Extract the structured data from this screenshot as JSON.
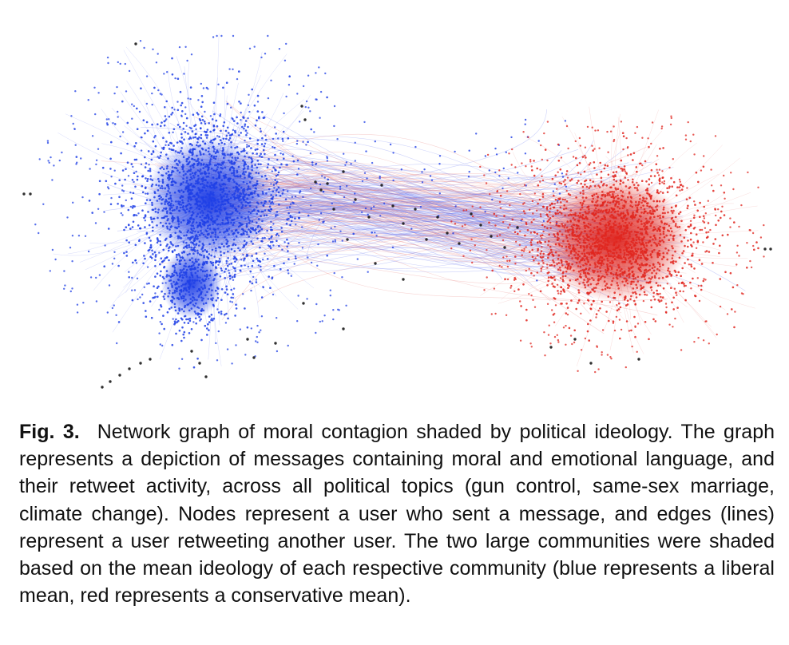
{
  "figure": {
    "colors": {
      "liberal": "#1f3fe6",
      "conservative": "#e0261f",
      "unaffiliated": "#1a1a1a",
      "edge_liberal": "#6f7ef0",
      "edge_conservative": "#e88580"
    },
    "communities": [
      {
        "color_key": "liberal"
      },
      {
        "color_key": "conservative"
      }
    ]
  },
  "caption": {
    "label": "Fig. 3.",
    "text": "Network graph of moral contagion shaded by political ideology. The graph represents a depiction of messages containing moral and emotional language, and their retweet activity, across all political topics (gun control, same-sex marriage, climate change). Nodes represent a user who sent a message, and edges (lines) represent a user retweeting another user. The two large communities were shaded based on the mean ideology of each respective community (blue represents a liberal mean, red represents a conservative mean)."
  }
}
